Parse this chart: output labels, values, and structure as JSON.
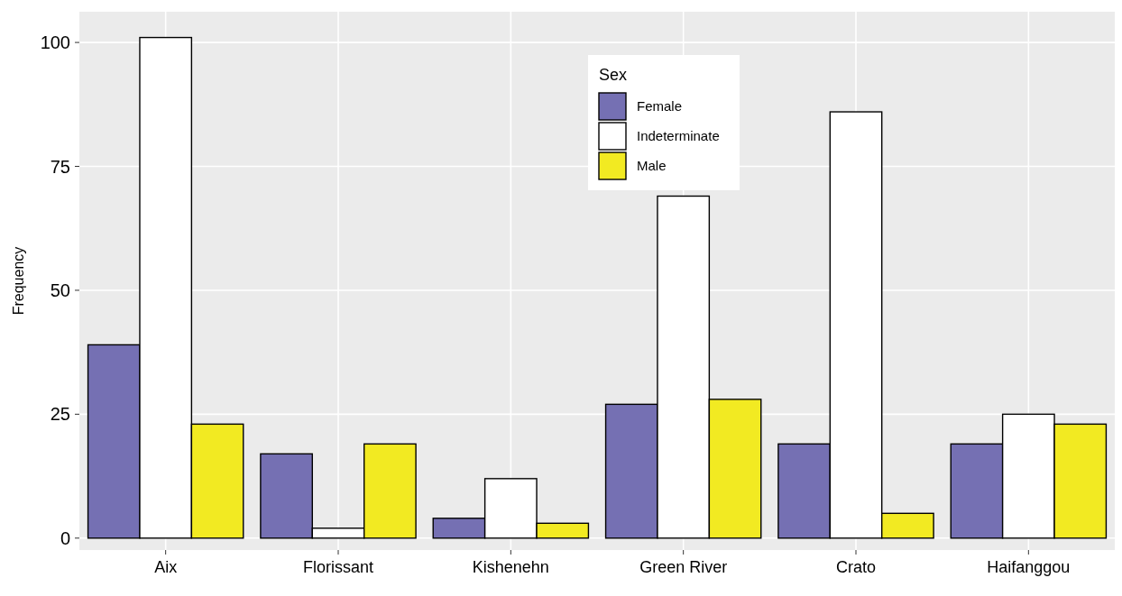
{
  "chart_data": {
    "type": "bar",
    "ylabel": "Frequency",
    "legend_title": "Sex",
    "legend": "top",
    "grid": true,
    "categories": [
      "Aix",
      "Florissant",
      "Kishenehn",
      "Green River",
      "Crato",
      "Haifanggou"
    ],
    "series": [
      {
        "name": "Female",
        "color": "#7570b3",
        "values": [
          39,
          17,
          4,
          27,
          19,
          19
        ]
      },
      {
        "name": "Indeterminate",
        "color": "#ffffff",
        "values": [
          101,
          2,
          12,
          69,
          86,
          25
        ]
      },
      {
        "name": "Male",
        "color": "#f2ea22",
        "values": [
          23,
          19,
          3,
          28,
          5,
          23
        ]
      }
    ],
    "ylim": [
      -2.4,
      106.2
    ],
    "yticks": [
      0,
      25,
      50,
      75,
      100
    ]
  }
}
